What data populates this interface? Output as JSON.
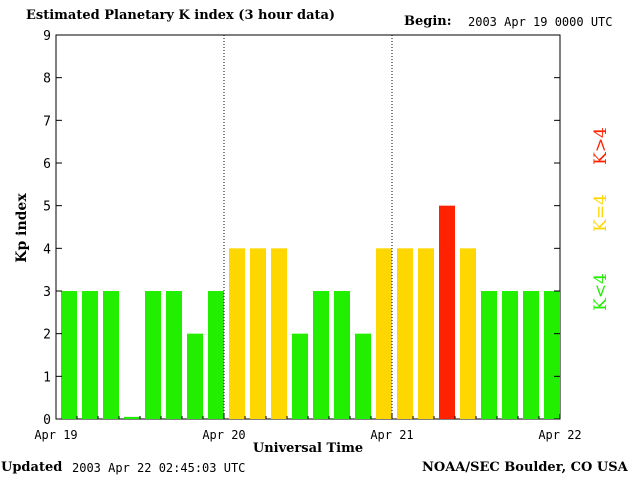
{
  "header": {
    "title": "Estimated Planetary K index (3 hour data)",
    "begin_label": "Begin:",
    "begin_value": "2003 Apr 19 0000 UTC"
  },
  "footer": {
    "updated_label": "Updated",
    "updated_value": "2003 Apr 22 02:45:03 UTC",
    "credit": "NOAA/SEC Boulder, CO USA"
  },
  "legend": {
    "low": "K<4",
    "eq": "K=4",
    "high": "K>4"
  },
  "colors": {
    "low": "#22ee00",
    "eq": "#ffd700",
    "high": "#ff2200"
  },
  "chart_data": {
    "type": "bar",
    "title": "Estimated Planetary K index (3 hour data)",
    "xlabel": "Universal Time",
    "ylabel": "Kp index",
    "ylim": [
      0,
      9
    ],
    "yticks": [
      "0",
      "1",
      "2",
      "3",
      "4",
      "5",
      "6",
      "7",
      "8",
      "9"
    ],
    "day_labels": [
      "Apr 19",
      "Apr 20",
      "Apr 21",
      "Apr 22"
    ],
    "values": [
      3,
      3,
      3,
      0.05,
      3,
      3,
      2,
      3,
      4,
      4,
      4,
      2,
      3,
      3,
      2,
      4,
      4,
      4,
      5,
      4,
      3,
      3,
      3,
      3
    ]
  }
}
